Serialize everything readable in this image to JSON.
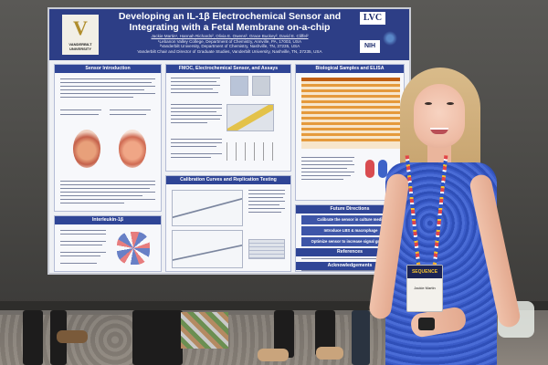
{
  "poster": {
    "title_line1": "Developing an IL-1β Electrochemical Sensor and",
    "title_line2": "Integrating with a Fetal Membrane on-a-chip",
    "authors": "Jackie Martin¹, Hannah Richards², Olivia E. Owens², Grace Buckey², David E. Cliffel²",
    "affil1": "¹Lebanon Valley College, Department of Chemistry, Annville, PA, 17003, USA",
    "affil2": "²Vanderbilt University, Department of Chemistry, Nashville, TN, 37235, USA",
    "affil3": "Vanderbilt Chair and Director of Graduate Studies, Vanderbilt University, Nashville, TN, 37235, USA",
    "logo_left_letter": "V",
    "logo_left_text": "VANDERBILT UNIVERSITY",
    "logo_right_top": "LVC",
    "logo_right_bottom": "NIH",
    "sections": {
      "sensor_intro": "Sensor Introduction",
      "fmoc": "FMOC, Electrochemical Sensor, and Assays",
      "bio_samples": "Biological Samples and ELISA",
      "calibration": "Calibration Curves and Replication Testing",
      "interleukin": "Interleukin-1β",
      "future": "Future Directions",
      "references": "References",
      "acknowledgements": "Acknowledgements"
    },
    "future_items": [
      "Calibrate the sensor in culture media",
      "Introduce LBS & macrophage",
      "Optimize sensor to increase signal gradient"
    ]
  },
  "badge": {
    "top_text": "SEQUENCE",
    "name": "Jackie Martin"
  },
  "colors": {
    "poster_header": "#2d3e86",
    "panel_head": "#2f4596",
    "dress": "#3b5cc8",
    "hair": "#c9a672"
  }
}
